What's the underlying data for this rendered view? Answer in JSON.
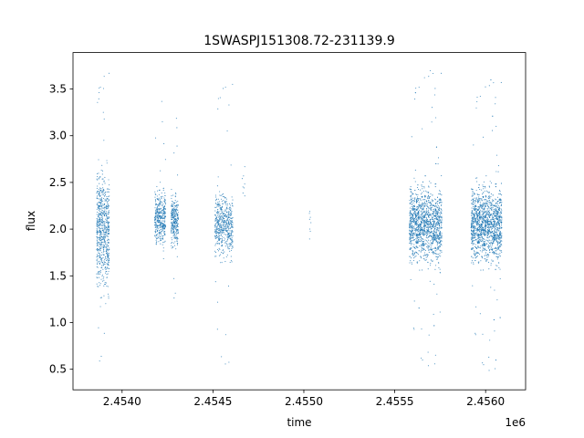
{
  "chart_data": {
    "type": "scatter",
    "title": "1SWASPJ151308.72-231139.9",
    "xlabel": "time",
    "ylabel": "flux",
    "x_offset_label": "1e6",
    "x_scale_multiplier": 1000000,
    "xlim": [
      2.45373,
      2.45622
    ],
    "ylim": [
      0.28,
      3.89
    ],
    "x_ticks": [
      2.454,
      2.4545,
      2.455,
      2.4555,
      2.456
    ],
    "x_tick_labels": [
      "2.4540",
      "2.4545",
      "2.4550",
      "2.4555",
      "2.4560"
    ],
    "y_ticks": [
      0.5,
      1.0,
      1.5,
      2.0,
      2.5,
      3.0,
      3.5
    ],
    "y_tick_labels": [
      "0.5",
      "1.0",
      "1.5",
      "2.0",
      "2.5",
      "3.0",
      "3.5"
    ],
    "grid": false,
    "legend": "none",
    "marker_color": "#1f77b4",
    "clusters": [
      {
        "x_start": 2.45386,
        "x_end": 2.45393,
        "flux_center": 2.0,
        "flux_spread": 0.45,
        "flux_min": 0.52,
        "flux_max": 3.72,
        "count": 700
      },
      {
        "x_start": 2.45418,
        "x_end": 2.45424,
        "flux_center": 2.12,
        "flux_spread": 0.22,
        "flux_min": 1.6,
        "flux_max": 3.38,
        "count": 400
      },
      {
        "x_start": 2.45427,
        "x_end": 2.45431,
        "flux_center": 2.08,
        "flux_spread": 0.2,
        "flux_min": 1.2,
        "flux_max": 3.22,
        "count": 300
      },
      {
        "x_start": 2.45451,
        "x_end": 2.45461,
        "flux_center": 2.05,
        "flux_spread": 0.25,
        "flux_min": 0.52,
        "flux_max": 3.6,
        "count": 550
      },
      {
        "x_start": 2.45466,
        "x_end": 2.45468,
        "flux_center": 2.5,
        "flux_spread": 0.25,
        "flux_min": 2.2,
        "flux_max": 2.85,
        "count": 8
      },
      {
        "x_start": 2.45503,
        "x_end": 2.45504,
        "flux_center": 2.05,
        "flux_spread": 0.15,
        "flux_min": 1.85,
        "flux_max": 2.38,
        "count": 8
      },
      {
        "x_start": 2.45558,
        "x_end": 2.45576,
        "flux_center": 2.05,
        "flux_spread": 0.3,
        "flux_min": 0.5,
        "flux_max": 3.72,
        "count": 1500
      },
      {
        "x_start": 2.45592,
        "x_end": 2.45609,
        "flux_center": 2.05,
        "flux_spread": 0.3,
        "flux_min": 0.45,
        "flux_max": 3.62,
        "count": 1600
      }
    ]
  }
}
